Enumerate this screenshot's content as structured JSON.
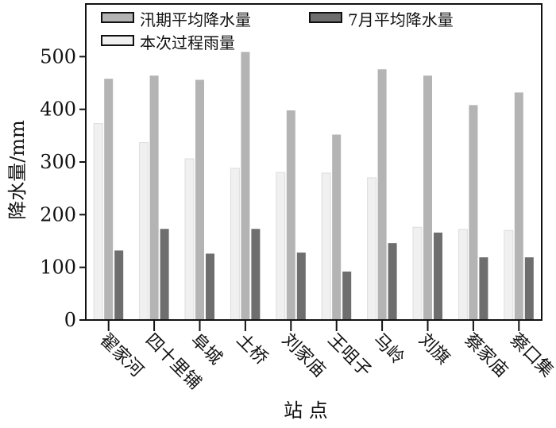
{
  "chart_data": {
    "type": "bar",
    "xlabel": "站 点",
    "ylabel": "降水量/mm",
    "ylim": [
      0,
      600
    ],
    "yticks": [
      0,
      100,
      200,
      300,
      400,
      500
    ],
    "grid": false,
    "legend_position": "top",
    "categories": [
      "翟家河",
      "四十里铺",
      "阜城",
      "土桥",
      "刘家庙",
      "王咀子",
      "马岭",
      "刘旗",
      "蔡家庙",
      "蔡口集"
    ],
    "series": [
      {
        "name": "本次过程雨量",
        "color": "#f0f0f0",
        "values": [
          373,
          337,
          306,
          288,
          280,
          279,
          270,
          176,
          172,
          170
        ]
      },
      {
        "name": "汛期平均降水量",
        "color": "#b4b4b4",
        "values": [
          458,
          464,
          456,
          509,
          398,
          352,
          476,
          464,
          408,
          432
        ]
      },
      {
        "name": "7月平均降水量",
        "color": "#6e6e6e",
        "values": [
          132,
          173,
          126,
          173,
          128,
          92,
          146,
          166,
          119,
          119
        ]
      }
    ]
  }
}
